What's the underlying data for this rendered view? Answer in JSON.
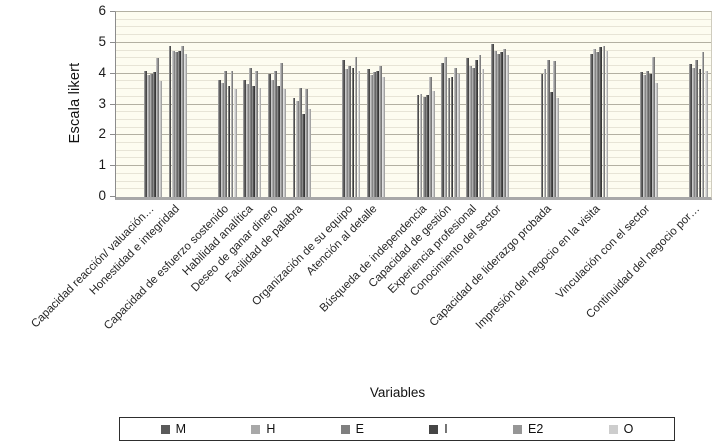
{
  "chart_data": {
    "type": "bar",
    "title": "",
    "xlabel": "Variables",
    "ylabel": "Escala likert",
    "ylim": [
      0,
      6
    ],
    "y_ticks": [
      0,
      1,
      2,
      3,
      4,
      5,
      6
    ],
    "grid": {
      "major_step": 1,
      "minor_step": 0.25,
      "visible": true
    },
    "legend_position": "bottom",
    "plot_background": "#fdfcf0",
    "total_slots": 24,
    "category_slots": [
      1,
      2,
      4,
      5,
      6,
      7,
      9,
      10,
      12,
      13,
      14,
      15,
      17,
      19,
      21,
      23
    ],
    "categories": [
      "Capacidad reacción/ valuación…",
      "Honestidad e integridad",
      "Capacidad de esfuerzo sostenido",
      "Habilidad analítica",
      "Deseo de ganar dinero",
      "Facilidad de palabra",
      "Organización de su equipo",
      "Atención al detalle",
      "Búsqueda de independencia",
      "Capacidad de gestión",
      "Experiencia profesional",
      "Conocimiento del sector",
      "Capacidad de liderazgo probada",
      "Impresión del negocio en la visita",
      "Vinculación con el sector",
      "Continuidad del negocio por…"
    ],
    "series": [
      {
        "name": "M",
        "color": "#5a5a5a",
        "values": [
          4.1,
          4.9,
          3.8,
          3.8,
          4.0,
          3.2,
          4.45,
          4.15,
          3.3,
          4.35,
          4.5,
          4.95,
          4.0,
          4.65,
          4.05,
          4.3
        ]
      },
      {
        "name": "H",
        "color": "#a8a8a8",
        "values": [
          3.95,
          4.75,
          3.7,
          3.65,
          3.8,
          3.1,
          4.15,
          3.95,
          3.35,
          4.55,
          4.25,
          4.75,
          4.15,
          4.8,
          3.95,
          4.2
        ]
      },
      {
        "name": "E",
        "color": "#7f7f7f",
        "values": [
          4.0,
          4.7,
          4.1,
          4.2,
          4.1,
          3.55,
          4.25,
          4.05,
          3.25,
          3.85,
          4.2,
          4.65,
          4.45,
          4.7,
          4.1,
          4.45
        ]
      },
      {
        "name": "I",
        "color": "#454545",
        "values": [
          4.05,
          4.75,
          3.6,
          3.6,
          3.6,
          2.7,
          4.2,
          4.1,
          3.3,
          3.9,
          4.45,
          4.7,
          3.4,
          4.85,
          4.0,
          4.15
        ]
      },
      {
        "name": "E2",
        "color": "#969696",
        "values": [
          4.5,
          4.9,
          4.1,
          4.1,
          4.35,
          3.5,
          4.55,
          4.25,
          3.9,
          4.2,
          4.6,
          4.8,
          4.4,
          4.9,
          4.55,
          4.7
        ]
      },
      {
        "name": "O",
        "color": "#cdcdcd",
        "values": [
          3.75,
          4.65,
          3.5,
          3.55,
          3.5,
          2.85,
          4.1,
          3.9,
          3.45,
          4.0,
          4.15,
          4.6,
          3.2,
          4.75,
          3.7,
          4.1
        ]
      }
    ]
  },
  "axes": {
    "y_title": "Escala likert",
    "x_title": "Variables"
  },
  "legend": {
    "items": [
      "M",
      "H",
      "E",
      "I",
      "E2",
      "O"
    ]
  }
}
